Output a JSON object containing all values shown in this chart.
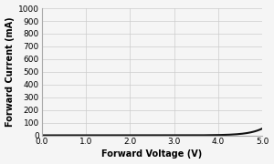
{
  "title": "",
  "xlabel": "Forward Voltage (V)",
  "ylabel": "Forward Current (mA)",
  "xlim": [
    0.0,
    5.0
  ],
  "ylim": [
    0,
    1000
  ],
  "xticks": [
    0.0,
    1.0,
    2.0,
    3.0,
    4.0,
    5.0
  ],
  "yticks": [
    0,
    100,
    200,
    300,
    400,
    500,
    600,
    700,
    800,
    900,
    1000
  ],
  "line_color": "#111111",
  "line_width": 1.5,
  "grid_color": "#cccccc",
  "background_color": "#f5f5f5",
  "diode_Vt": 0.026,
  "diode_Is": 1e-09,
  "diode_n": 18.0,
  "V_start": 0.0,
  "V_end": 5.0,
  "I_clamp": 1000
}
